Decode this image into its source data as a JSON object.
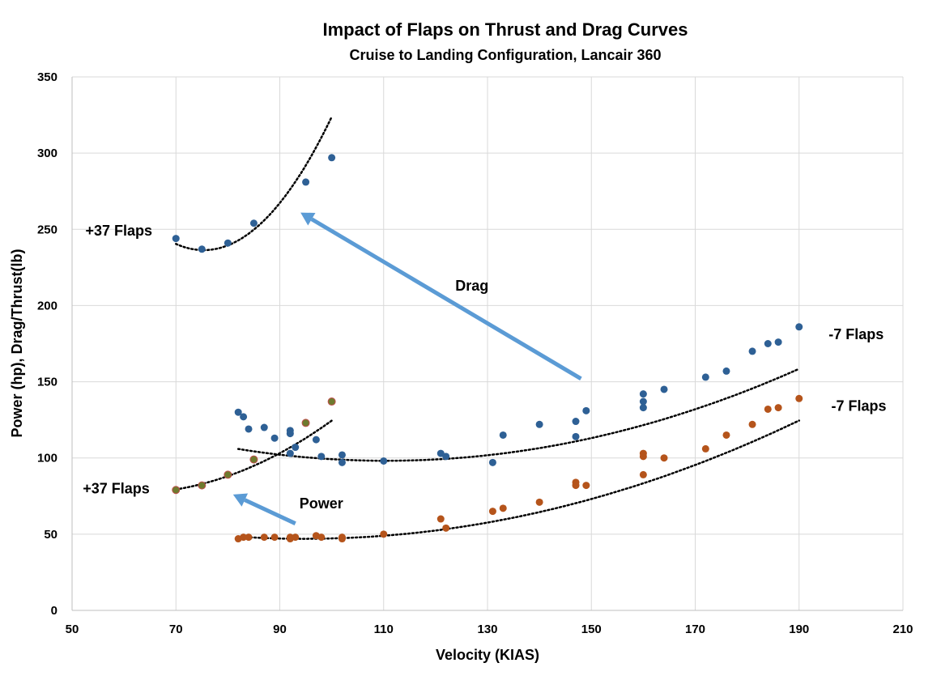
{
  "chart_data": {
    "type": "scatter",
    "title": "Impact of Flaps on Thrust and Drag Curves",
    "subtitle": "Cruise to Landing Configuration, Lancair 360",
    "xlabel": "Velocity (KIAS)",
    "ylabel": "Power (hp), Drag/Thrust(lb)",
    "xlim": [
      50,
      210
    ],
    "ylim": [
      0,
      350
    ],
    "xticks": [
      "50",
      "70",
      "90",
      "110",
      "130",
      "150",
      "170",
      "190",
      "210"
    ],
    "yticks": [
      "0",
      "50",
      "100",
      "150",
      "200",
      "250",
      "300",
      "350"
    ],
    "grid": true,
    "legend": "none",
    "colors": {
      "drag": "#2e6095",
      "power_clean": "#b5541b",
      "power_flaps": "#6e7a2e",
      "arrow": "#5b9bd5",
      "trend": "#000000"
    },
    "series": [
      {
        "key": "drag_flaps",
        "color": "#2e6095",
        "points": [
          [
            70,
            244
          ],
          [
            75,
            237
          ],
          [
            80,
            241
          ],
          [
            85,
            254
          ],
          [
            95,
            281
          ],
          [
            100,
            297
          ]
        ]
      },
      {
        "key": "drag_clean",
        "color": "#2e6095",
        "points": [
          [
            82,
            130
          ],
          [
            83,
            127
          ],
          [
            84,
            119
          ],
          [
            87,
            120
          ],
          [
            89,
            113
          ],
          [
            92,
            118
          ],
          [
            92,
            116
          ],
          [
            92,
            103
          ],
          [
            93,
            107
          ],
          [
            97,
            112
          ],
          [
            98,
            101
          ],
          [
            102,
            102
          ],
          [
            102,
            97
          ],
          [
            110,
            98
          ],
          [
            121,
            103
          ],
          [
            122,
            101
          ],
          [
            131,
            97
          ],
          [
            133,
            115
          ],
          [
            140,
            122
          ],
          [
            147,
            124
          ],
          [
            147,
            114
          ],
          [
            149,
            131
          ],
          [
            160,
            142
          ],
          [
            160,
            137
          ],
          [
            160,
            133
          ],
          [
            164,
            145
          ],
          [
            172,
            153
          ],
          [
            176,
            157
          ],
          [
            181,
            170
          ],
          [
            184,
            175
          ],
          [
            186,
            176
          ],
          [
            190,
            186
          ]
        ]
      },
      {
        "key": "power_flaps",
        "color": "#6e7a2e",
        "points": [
          [
            70,
            79
          ],
          [
            75,
            82
          ],
          [
            80,
            89
          ],
          [
            85,
            99
          ],
          [
            95,
            123
          ],
          [
            100,
            137
          ]
        ]
      },
      {
        "key": "power_clean",
        "color": "#b5541b",
        "points": [
          [
            82,
            47
          ],
          [
            83,
            48
          ],
          [
            84,
            48
          ],
          [
            87,
            48
          ],
          [
            89,
            48
          ],
          [
            92,
            47
          ],
          [
            92,
            48
          ],
          [
            93,
            48
          ],
          [
            97,
            49
          ],
          [
            98,
            48
          ],
          [
            102,
            48
          ],
          [
            102,
            47
          ],
          [
            110,
            50
          ],
          [
            121,
            60
          ],
          [
            122,
            54
          ],
          [
            131,
            65
          ],
          [
            133,
            67
          ],
          [
            140,
            71
          ],
          [
            147,
            84
          ],
          [
            147,
            82
          ],
          [
            149,
            82
          ],
          [
            160,
            101
          ],
          [
            160,
            103
          ],
          [
            160,
            89
          ],
          [
            164,
            100
          ],
          [
            172,
            106
          ],
          [
            176,
            115
          ],
          [
            181,
            122
          ],
          [
            184,
            132
          ],
          [
            186,
            133
          ],
          [
            190,
            139
          ]
        ]
      }
    ],
    "trendlines": [
      {
        "key": "drag_flaps_fit",
        "x_range": [
          70,
          100
        ],
        "coef": [
          0.1437,
          -21.65,
          1051.8
        ]
      },
      {
        "key": "drag_clean_fit",
        "x_range": [
          82,
          190
        ],
        "coef": [
          0.00954,
          -2.108,
          214.6
        ]
      },
      {
        "key": "power_flaps_fit",
        "x_range": [
          70,
          100
        ],
        "coef": [
          0.0315,
          -3.85,
          194.5
        ]
      },
      {
        "key": "power_clean_fit",
        "x_range": [
          82,
          190
        ],
        "coef": [
          0.00855,
          -1.62,
          123.7
        ]
      }
    ],
    "annotations": [
      {
        "key": "drag_flaps_label",
        "text": "+37 Flaps",
        "x": 59,
        "y": 249
      },
      {
        "key": "power_flaps_label",
        "text": "+37 Flaps",
        "x": 58.5,
        "y": 80
      },
      {
        "key": "drag_clean_label",
        "text": "-7 Flaps",
        "x": 201,
        "y": 181
      },
      {
        "key": "power_clean_label",
        "text": "-7 Flaps",
        "x": 201.5,
        "y": 134
      },
      {
        "key": "drag_arrow_label",
        "text": "Drag",
        "x": 127,
        "y": 213
      },
      {
        "key": "power_arrow_label",
        "text": "Power",
        "x": 98,
        "y": 70
      }
    ],
    "arrows": [
      {
        "key": "drag-arrow",
        "from": [
          148,
          152
        ],
        "to": [
          94,
          261
        ]
      },
      {
        "key": "power-arrow",
        "from": [
          93,
          57
        ],
        "to": [
          81,
          76
        ]
      }
    ]
  }
}
